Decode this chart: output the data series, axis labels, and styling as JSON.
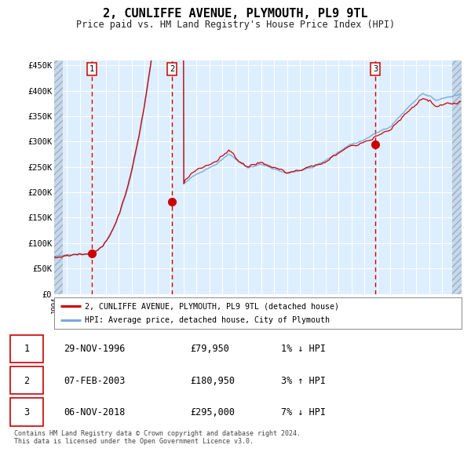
{
  "title": "2, CUNLIFFE AVENUE, PLYMOUTH, PL9 9TL",
  "subtitle": "Price paid vs. HM Land Registry's House Price Index (HPI)",
  "title_fontsize": 11,
  "subtitle_fontsize": 9,
  "background_color": "#ffffff",
  "plot_bg_color": "#ddeeff",
  "grid_color": "#ffffff",
  "purchases": [
    {
      "date_num": 1996.91,
      "price": 79950,
      "label": "1"
    },
    {
      "date_num": 2003.1,
      "price": 180950,
      "label": "2"
    },
    {
      "date_num": 2018.85,
      "price": 295000,
      "label": "3"
    }
  ],
  "vline_dates": [
    1996.91,
    2003.1,
    2018.85
  ],
  "vline_color": "#cc0000",
  "dot_color": "#cc0000",
  "hpi_line_color": "#7aaadd",
  "price_line_color": "#cc0000",
  "xlim": [
    1994.0,
    2025.5
  ],
  "ylim": [
    0,
    460000
  ],
  "yticks": [
    0,
    50000,
    100000,
    150000,
    200000,
    250000,
    300000,
    350000,
    400000,
    450000
  ],
  "legend_entry1": "2, CUNLIFFE AVENUE, PLYMOUTH, PL9 9TL (detached house)",
  "legend_entry2": "HPI: Average price, detached house, City of Plymouth",
  "table_rows": [
    {
      "label": "1",
      "date": "29-NOV-1996",
      "price": "£79,950",
      "hpi": "1% ↓ HPI"
    },
    {
      "label": "2",
      "date": "07-FEB-2003",
      "price": "£180,950",
      "hpi": "3% ↑ HPI"
    },
    {
      "label": "3",
      "date": "06-NOV-2018",
      "price": "£295,000",
      "hpi": "7% ↓ HPI"
    }
  ],
  "footer": "Contains HM Land Registry data © Crown copyright and database right 2024.\nThis data is licensed under the Open Government Licence v3.0."
}
